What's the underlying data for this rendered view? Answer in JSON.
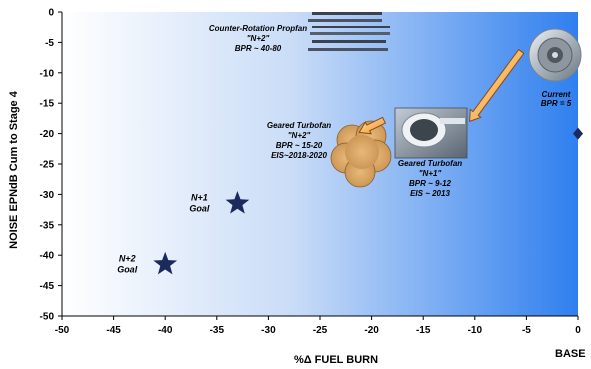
{
  "chart_data": {
    "type": "scatter",
    "title": "",
    "xlabel": "%Δ FUEL BURN",
    "ylabel": "NOISE EPNdB Cum to Stage 4",
    "xlim": [
      -50,
      0
    ],
    "ylim": [
      -50,
      0
    ],
    "x_ticks": [
      "-50",
      "-45",
      "-40",
      "-35",
      "-30",
      "-25",
      "-20",
      "-15",
      "-10",
      "-5",
      "0"
    ],
    "y_ticks": [
      "0",
      "-5",
      "-10",
      "-15",
      "-20",
      "-25",
      "-30",
      "-35",
      "-40",
      "-45",
      "-50"
    ],
    "baseline_label": "BASE",
    "grid": false,
    "background": {
      "left": "#ffffff",
      "right": "#2f7fef"
    },
    "points": [
      {
        "id": "n1-goal",
        "x": -33,
        "y": -31.5,
        "marker": "star",
        "color": "#1a2a5e",
        "label": [
          "N+1",
          "Goal"
        ]
      },
      {
        "id": "n2-goal",
        "x": -40,
        "y": -41.5,
        "marker": "star",
        "color": "#1a2a5e",
        "label": [
          "N+2",
          "Goal"
        ]
      },
      {
        "id": "base",
        "x": 0,
        "y": -20,
        "marker": "diamond",
        "color": "#1a2a5e",
        "label": []
      }
    ],
    "annotations": [
      {
        "id": "propfan",
        "lines": [
          "Counter-Rotation  Propfan",
          "\"N+2\"",
          "BPR ~ 40-80"
        ]
      },
      {
        "id": "current",
        "lines": [
          "Current",
          "BPR = 5"
        ]
      },
      {
        "id": "gtf-n2",
        "lines": [
          "Geared Turbofan",
          "\"N+2\"",
          "BPR ~ 15-20",
          "EIS~2018-2020"
        ]
      },
      {
        "id": "gtf-n1",
        "lines": [
          "Geared Turbofan",
          "\"N+1\"",
          "BPR ~ 9-12",
          "EIS ~ 2013"
        ]
      }
    ],
    "arrows": [
      {
        "from": [
          -5.5,
          -6.5
        ],
        "to": [
          -10.5,
          -18
        ]
      },
      {
        "from": [
          -18.8,
          -17.8
        ],
        "to": [
          -21.2,
          -19.8
        ]
      }
    ]
  }
}
